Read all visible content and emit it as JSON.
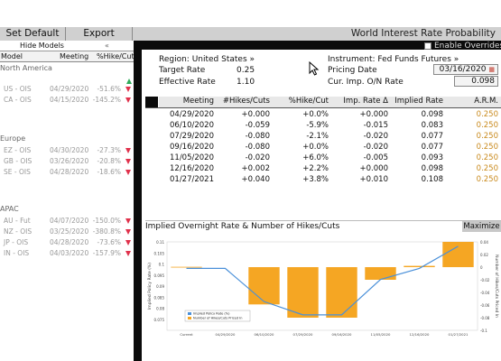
{
  "toolbar": {
    "set_default": "Set Default",
    "export": "Export",
    "title": "World Interest Rate Probability"
  },
  "left_panel": {
    "hide_models": "Hide Models",
    "collapse_glyph": "«",
    "headers": {
      "model": "Model",
      "meeting": "Meeting",
      "hike_cut": "%Hike/Cut"
    },
    "groups": [
      {
        "name": "North America",
        "rows": [
          {
            "model": "US - OIS",
            "meeting": "04/29/2020",
            "value": "-51.6%",
            "dir": "down"
          },
          {
            "model": "CA - OIS",
            "meeting": "04/15/2020",
            "value": "-145.2%",
            "dir": "down"
          }
        ]
      },
      {
        "name": "Europe",
        "rows": [
          {
            "model": "EZ - OIS",
            "meeting": "04/30/2020",
            "value": "-27.3%",
            "dir": "down"
          },
          {
            "model": "GB - OIS",
            "meeting": "03/26/2020",
            "value": "-20.8%",
            "dir": "down"
          },
          {
            "model": "SE - OIS",
            "meeting": "04/28/2020",
            "value": "-18.6%",
            "dir": "down"
          }
        ]
      },
      {
        "name": "APAC",
        "rows": [
          {
            "model": "AU - Fut",
            "meeting": "04/07/2020",
            "value": "-150.0%",
            "dir": "down"
          },
          {
            "model": "NZ - OIS",
            "meeting": "03/25/2020",
            "value": "-380.8%",
            "dir": "down"
          },
          {
            "model": "JP - OIS",
            "meeting": "04/28/2020",
            "value": "-73.6%",
            "dir": "down"
          },
          {
            "model": "IN - OIS",
            "meeting": "04/03/2020",
            "value": "-157.9%",
            "dir": "down"
          }
        ]
      }
    ]
  },
  "info": {
    "region": "Region: United States »",
    "target_rate_label": "Target Rate",
    "target_rate": "0.25",
    "effective_rate_label": "Effective Rate",
    "effective_rate": "1.10",
    "instrument": "Instrument: Fed Funds Futures »",
    "pricing_date_label": "Pricing Date",
    "pricing_date": "03/16/2020",
    "cur_imp_label": "Cur. Imp. O/N Rate",
    "cur_imp": "0.098",
    "enable_overrides": "Enable Overrides"
  },
  "table": {
    "headers": [
      "Meeting",
      "#Hikes/Cuts",
      "%Hike/Cut",
      "Imp. Rate Δ",
      "Implied Rate",
      "A.R.M."
    ],
    "rows": [
      [
        "04/29/2020",
        "+0.000",
        "+0.0%",
        "+0.000",
        "0.098",
        "0.250"
      ],
      [
        "06/10/2020",
        "-0.059",
        "-5.9%",
        "-0.015",
        "0.083",
        "0.250"
      ],
      [
        "07/29/2020",
        "-0.080",
        "-2.1%",
        "-0.020",
        "0.077",
        "0.250"
      ],
      [
        "09/16/2020",
        "-0.080",
        "+0.0%",
        "-0.020",
        "0.077",
        "0.250"
      ],
      [
        "11/05/2020",
        "-0.020",
        "+6.0%",
        "-0.005",
        "0.093",
        "0.250"
      ],
      [
        "12/16/2020",
        "+0.002",
        "+2.2%",
        "+0.000",
        "0.098",
        "0.250"
      ],
      [
        "01/27/2021",
        "+0.040",
        "+3.8%",
        "+0.010",
        "0.108",
        "0.250"
      ]
    ]
  },
  "chart_panel": {
    "title": "Implied Overnight Rate & Number of Hikes/Cuts",
    "maximize": "Maximize"
  },
  "chart_data": {
    "type": "bar",
    "categories": [
      "Current",
      "04/29/2020",
      "06/10/2020",
      "07/29/2020",
      "09/16/2020",
      "11/05/2020",
      "12/16/2020",
      "01/27/2021"
    ],
    "series": [
      {
        "name": "Implied Policy Rate (%)",
        "type": "line",
        "color": "#4a90d9",
        "values": [
          0.098,
          0.098,
          0.083,
          0.077,
          0.077,
          0.093,
          0.098,
          0.108
        ]
      },
      {
        "name": "Number of Hikes/Cuts Priced In",
        "type": "bar",
        "color": "#f5a623",
        "values": [
          0,
          0.0,
          -0.059,
          -0.08,
          -0.08,
          -0.02,
          0.002,
          0.04
        ]
      }
    ],
    "ylabel": "Implied Policy Rate (%)",
    "y2label": "Number of Hikes/Cuts Priced In",
    "ylim": [
      0.07,
      0.11
    ],
    "y2lim": [
      -0.1,
      0.04
    ],
    "yticks": [
      "0.11",
      "0.105",
      "0.1",
      "0.095",
      "0.09",
      "0.085",
      "0.08",
      "0.075"
    ],
    "y2ticks": [
      "0.04",
      "0.02",
      "0",
      "-0.02",
      "-0.04",
      "-0.06",
      "-0.08",
      "-0.1"
    ],
    "legend": "bottom-left"
  }
}
